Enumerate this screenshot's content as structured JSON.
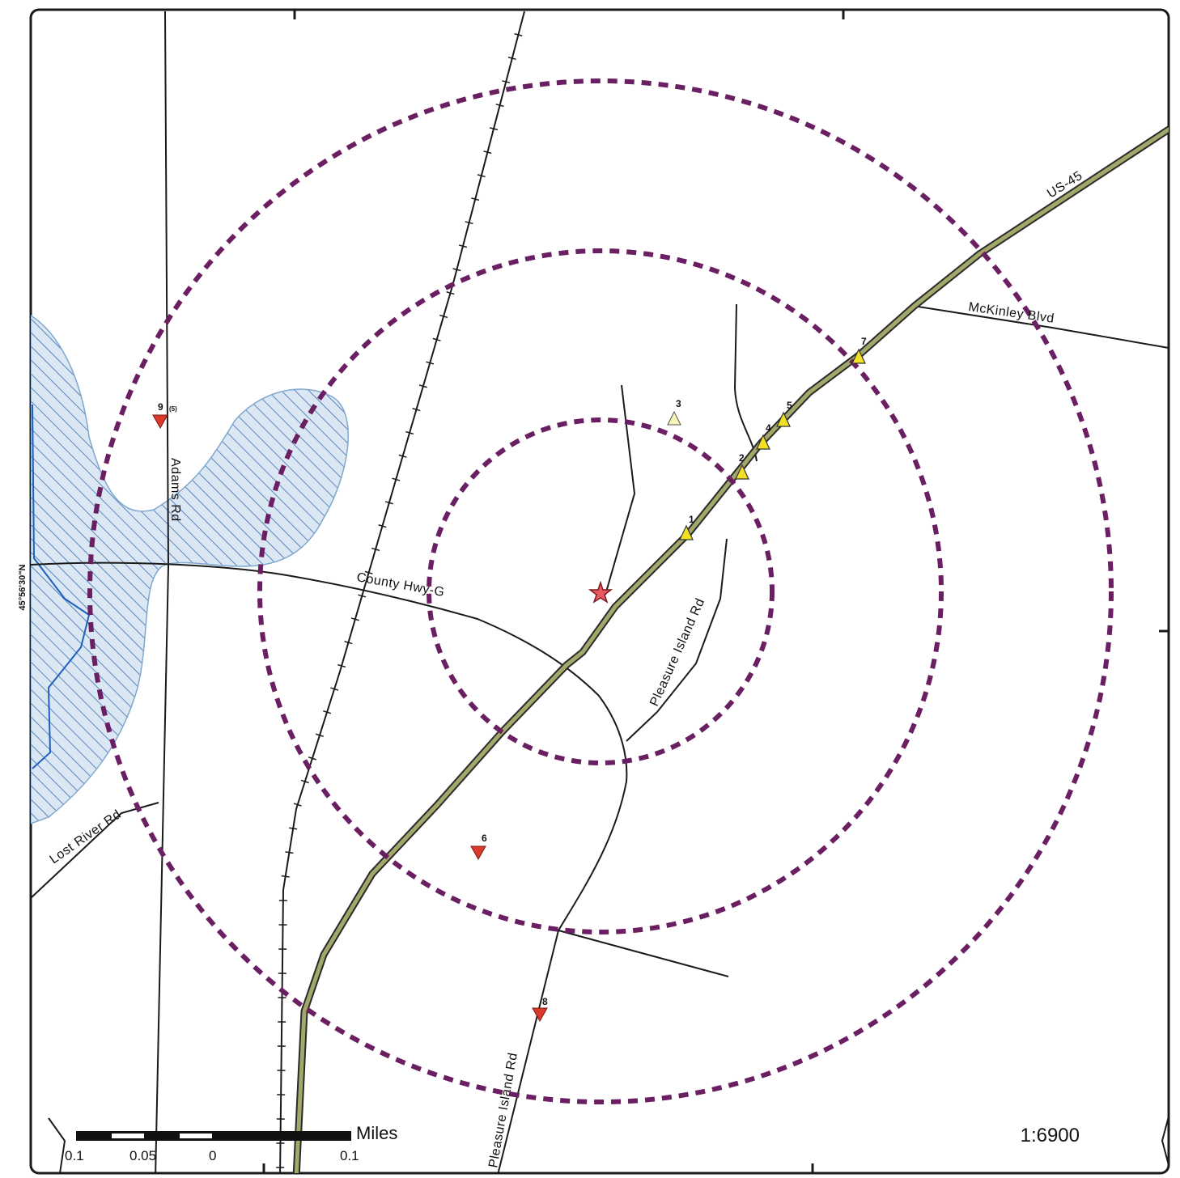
{
  "map": {
    "scale_ratio": "1:6900",
    "scale_unit": "Miles",
    "scale_ticks": [
      "0.1",
      "0.05",
      "0",
      "0.1"
    ],
    "latitude_label": "45°56'30\"N",
    "colors": {
      "buffer_ring": "#6b1f63",
      "highway_fill": "#a3a86a",
      "water_hatch": "#3a6fb0",
      "water_fill": "#dbe7f2",
      "up_marker": "#f2e022",
      "down_marker": "#d93a2b",
      "site_star": "#e85a63"
    },
    "roads": {
      "us45": "US-45",
      "mckinley": "McKinley Blvd",
      "county_hwy_g": "County Hwy-G",
      "adams": "Adams Rd",
      "pleasure_island_1": "Pleasure Island Rd",
      "pleasure_island_2": "Pleasure Island Rd",
      "lost_river": "Lost River Rd"
    },
    "markers": [
      {
        "label": "1",
        "kind": "up"
      },
      {
        "label": "2",
        "kind": "up"
      },
      {
        "label": "3",
        "kind": "up-outline"
      },
      {
        "label": "4",
        "kind": "up"
      },
      {
        "label": "5",
        "kind": "up"
      },
      {
        "label": "6",
        "kind": "down"
      },
      {
        "label": "7",
        "kind": "up"
      },
      {
        "label": "8",
        "kind": "down"
      },
      {
        "label": "9",
        "kind": "down",
        "note": "(5)"
      }
    ]
  }
}
